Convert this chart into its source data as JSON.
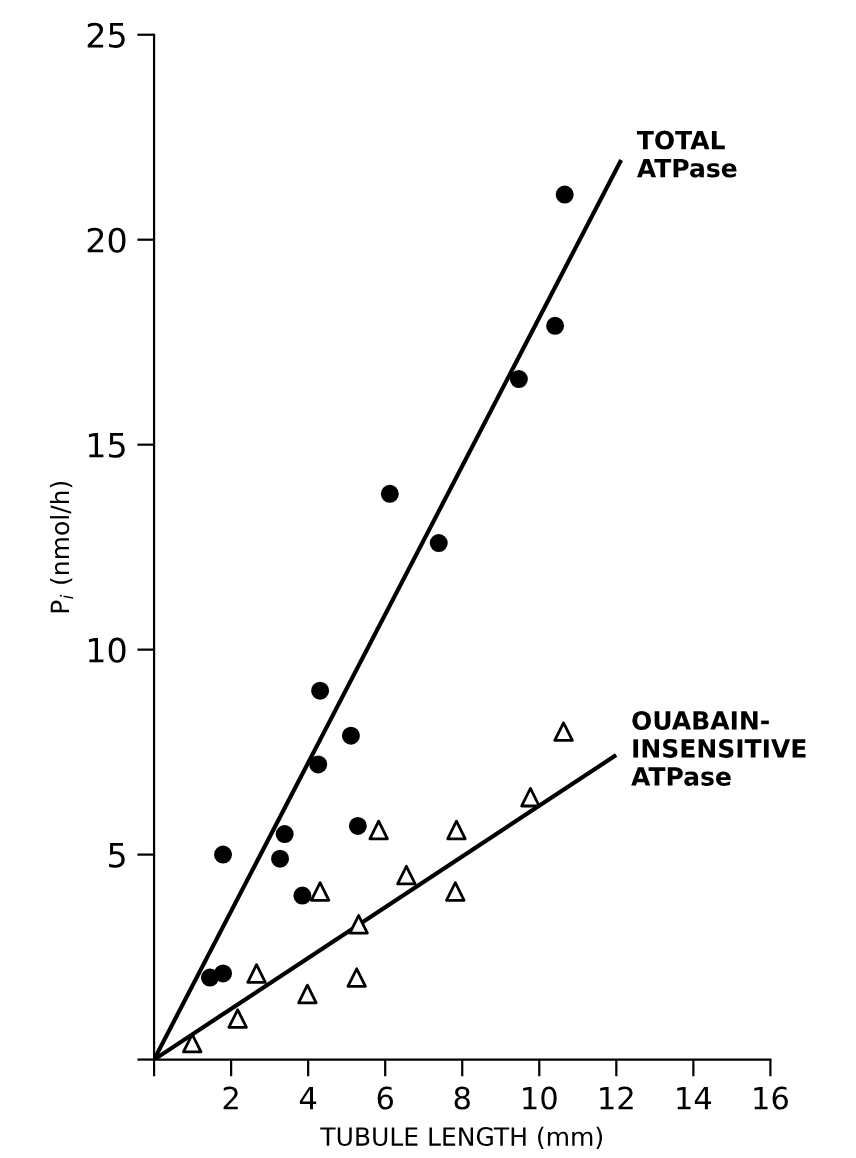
{
  "chart_data": {
    "type": "scatter",
    "xlabel": "TUBULE LENGTH (mm)",
    "ylabel": "P$_{i}$ (nmol/h)",
    "xlim": [
      0,
      16
    ],
    "ylim": [
      0,
      25
    ],
    "xticks": [
      {
        "value": 0,
        "label": null
      },
      2,
      4,
      6,
      8,
      10,
      12,
      14,
      16
    ],
    "yticks": [
      {
        "value": 0,
        "label": null
      },
      5,
      10,
      15,
      20,
      25
    ],
    "grid": false,
    "legend": false,
    "series": [
      {
        "marker": "circle",
        "color": "#000000",
        "x": [
          4.31,
          5.11,
          4.26,
          3.39,
          3.27,
          1.79,
          5.29,
          3.85,
          1.45,
          1.79,
          10.66,
          10.41,
          9.47,
          6.12,
          7.39
        ],
        "values": [
          9.0,
          7.9,
          7.2,
          5.5,
          4.9,
          5.0,
          5.7,
          4.0,
          2.0,
          2.1,
          21.1,
          17.9,
          16.6,
          13.8,
          12.6
        ]
      },
      {
        "marker": "triangle",
        "color": "#000000",
        "x": [
          10.63,
          9.77,
          5.83,
          7.85,
          6.55,
          4.31,
          7.82,
          5.31,
          5.26,
          2.66,
          3.98,
          2.17,
          0.99
        ],
        "values": [
          8.0,
          6.4,
          5.6,
          5.6,
          4.5,
          4.1,
          4.1,
          3.3,
          2.0,
          2.1,
          1.6,
          1.0,
          0.4
        ]
      },
      {
        "type": "line",
        "color": "#000000",
        "x": [
          0,
          12.1
        ],
        "values": [
          0,
          21.9
        ]
      },
      {
        "type": "line",
        "color": "#000000",
        "x": [
          0,
          11.95
        ],
        "values": [
          0,
          7.4
        ]
      }
    ],
    "annotations": [
      {
        "text": "TOTAL\nATPase",
        "x": 12.1,
        "y": 21.9
      },
      {
        "text": "OUABAIN-\nINSENSITIVE\nATPase",
        "x": 11.95,
        "y": 7.4
      }
    ]
  }
}
